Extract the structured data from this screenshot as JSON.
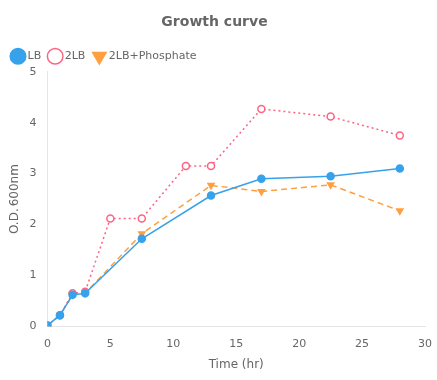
{
  "chart_data": {
    "type": "line",
    "title": "Growth curve",
    "xlabel": "Time (hr)",
    "ylabel": "O.D. 600nm",
    "xlim": [
      0,
      30
    ],
    "ylim": [
      0,
      5
    ],
    "xticks": [
      0,
      5,
      10,
      15,
      20,
      25,
      30
    ],
    "yticks": [
      0,
      1,
      2,
      3,
      4,
      5
    ],
    "grid": false,
    "legend": "upper left",
    "series": [
      {
        "name": "LB",
        "marker": "circle",
        "line_style": "solid",
        "x": [
          0,
          1,
          2,
          3,
          7.5,
          13,
          17,
          22.5,
          28
        ],
        "values": [
          0.02,
          0.22,
          0.62,
          0.65,
          1.72,
          2.57,
          2.9,
          2.95,
          3.1
        ]
      },
      {
        "name": "2LB",
        "marker": "open_circle",
        "line_style": "dotted",
        "x": [
          0,
          1,
          2,
          3,
          5,
          7.5,
          11,
          13,
          17,
          22.5,
          28
        ],
        "values": [
          0.02,
          0.22,
          0.65,
          0.68,
          2.12,
          2.12,
          3.15,
          3.15,
          4.27,
          4.12,
          3.75
        ]
      },
      {
        "name": "2LB+Phosphate",
        "marker": "triangle_down",
        "line_style": "dashed",
        "x": [
          0,
          1,
          2,
          3,
          7.5,
          13,
          17,
          22.5,
          28
        ],
        "values": [
          0.02,
          0.22,
          0.62,
          0.65,
          1.82,
          2.77,
          2.65,
          2.78,
          2.27
        ]
      }
    ]
  }
}
